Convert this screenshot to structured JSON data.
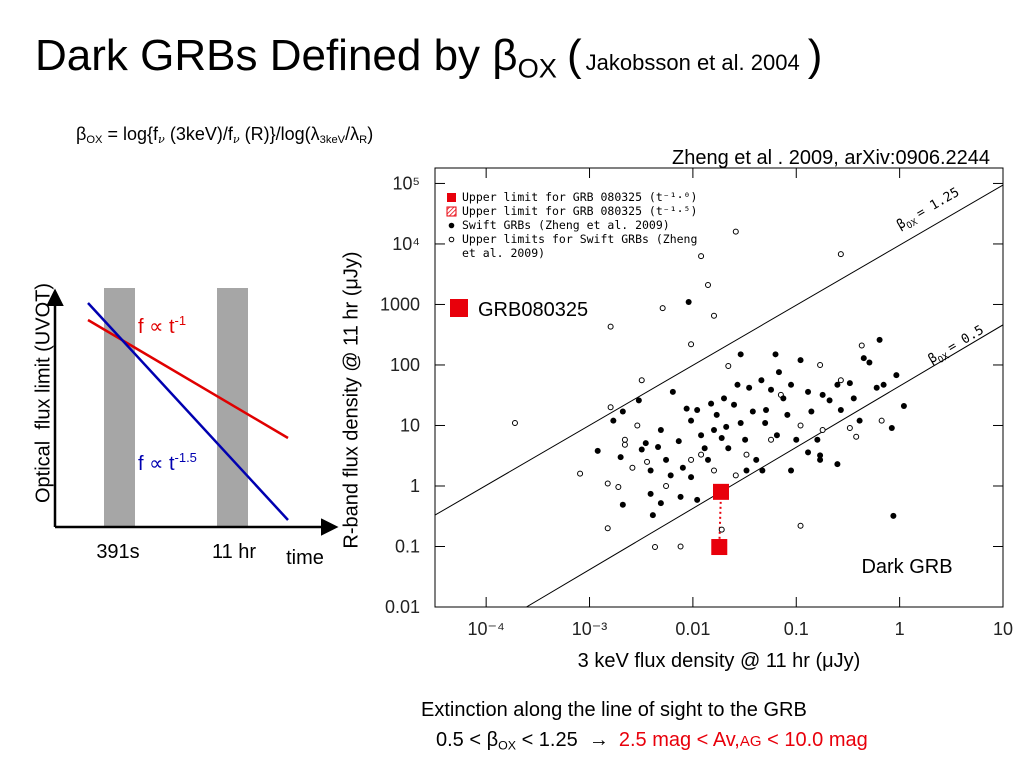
{
  "slide": {
    "title": {
      "main": "Dark GRBs Defined by β",
      "subscript": "OX",
      "open": "(",
      "reference": "Jakobsson et al. 2004",
      "close": ")"
    },
    "formula": [
      "β",
      "OX",
      " = log{f",
      "ν",
      " (3keV)/f",
      "ν",
      " (R)}/log(λ",
      "3keV",
      "/λ",
      "R",
      ")"
    ],
    "citation": "Zheng et al . 2009, arXiv:0906.2244",
    "schematic": {
      "y_label": "Optical  flux limit (UVOT)",
      "x_label": "time",
      "times": [
        "391s",
        "11 hr"
      ],
      "red_label": {
        "text": "f ∝ t",
        "exponent": "-1"
      },
      "blue_label": {
        "text": "f ∝ t",
        "exponent": "-1.5"
      }
    },
    "footer": {
      "line1": "Extinction along the line of sight to the GRB",
      "line2": [
        "0.5 < β",
        "OX",
        " < 1.25  →"
      ],
      "result": [
        "2.5 mag < Av,",
        "AG",
        " < 10.0 mag"
      ]
    }
  },
  "chart_data": {
    "type": "scatter",
    "x_label": "3 keV flux density @ 11 hr (μJy)",
    "y_label": "R-band flux density @ 11 hr (μJy)",
    "x_log": true,
    "y_log": true,
    "xlim": [
      3.2e-05,
      10
    ],
    "ylim": [
      0.01,
      180000
    ],
    "xticks": [
      {
        "value": 0.0001,
        "label": "10⁻⁴"
      },
      {
        "value": 0.001,
        "label": "10⁻³"
      },
      0.01,
      0.1,
      1,
      10
    ],
    "yticks": [
      0.01,
      0.1,
      1,
      10,
      100,
      1000,
      {
        "value": 10000,
        "label": "10⁴"
      },
      {
        "value": 100000,
        "label": "10⁵"
      }
    ],
    "series": [
      {
        "name": "Upper limit for GRB 080325 (t⁻¹·⁰)",
        "color": "#e8000b",
        "marker": "square",
        "x": [
          0.0187
        ],
        "values": [
          0.8
        ]
      },
      {
        "name": "Upper limit for GRB 080325 (t⁻¹·⁵)",
        "color": "#e8000b",
        "marker": "hatched-square",
        "x": [
          0.018
        ],
        "values": [
          0.098
        ]
      },
      {
        "name": "Swift GRBs (Zheng et al. 2009)",
        "color": "#000000",
        "marker": "circle",
        "x": [
          0.0091,
          0.0012,
          0.0017,
          0.0021,
          0.003,
          0.002,
          0.0032,
          0.0035,
          0.0039,
          0.0046,
          0.0049,
          0.0055,
          0.0064,
          0.0073,
          0.008,
          0.0087,
          0.0096,
          0.011,
          0.012,
          0.013,
          0.014,
          0.016,
          0.017,
          0.019,
          0.02,
          0.022,
          0.025,
          0.027,
          0.029,
          0.032,
          0.035,
          0.038,
          0.041,
          0.046,
          0.05,
          0.057,
          0.063,
          0.068,
          0.075,
          0.082,
          0.089,
          0.1,
          0.11,
          0.13,
          0.14,
          0.16,
          0.17,
          0.18,
          0.21,
          0.25,
          0.27,
          0.33,
          0.36,
          0.41,
          0.45,
          0.51,
          0.64,
          0.7,
          0.84,
          0.93,
          1.1,
          0.87,
          0.0021,
          0.0041,
          0.0049,
          0.0061,
          0.0076,
          0.0096,
          0.033,
          0.047,
          0.089,
          0.17,
          0.25,
          0.0039,
          0.011,
          0.021,
          0.029,
          0.065,
          0.13,
          0.6,
          0.015,
          0.051
        ],
        "values": [
          1100,
          3.8,
          12,
          17,
          26,
          3,
          4,
          5.1,
          1.8,
          4.4,
          8.4,
          2.7,
          36,
          5.5,
          2,
          19,
          12,
          18,
          6.9,
          4.2,
          2.7,
          8.4,
          15,
          6.2,
          28,
          4.2,
          22,
          47,
          11,
          5.8,
          42,
          17,
          2.7,
          56,
          11,
          39,
          150,
          76,
          28,
          15,
          47,
          5.8,
          120,
          36,
          17,
          5.8,
          3.2,
          32,
          26,
          47,
          18,
          50,
          28,
          12,
          130,
          110,
          260,
          47,
          9.1,
          68,
          21,
          0.32,
          0.49,
          0.33,
          0.52,
          1.5,
          0.66,
          1.4,
          1.8,
          1.8,
          1.8,
          2.7,
          2.3,
          0.74,
          0.59,
          9.5,
          150,
          6.9,
          3.6,
          42,
          23,
          18
        ]
      },
      {
        "name": "Upper limits for Swift GRBs (Zheng et al. 2009)",
        "color": "#000000",
        "marker": "open-circle",
        "x": [
          0.00019,
          0.0016,
          0.0016,
          0.00081,
          0.0015,
          0.0019,
          0.0015,
          0.0022,
          0.0026,
          0.0029,
          0.0032,
          0.0051,
          0.012,
          0.014,
          0.016,
          0.0096,
          0.026,
          0.27,
          0.022,
          0.0043,
          0.0076,
          0.11,
          0.019,
          0.0022,
          0.0036,
          0.0096,
          0.016,
          0.033,
          0.057,
          0.17,
          0.27,
          0.33,
          0.43,
          0.38,
          0.67,
          0.18,
          0.071,
          0.11,
          0.012,
          0.0055,
          0.026
        ],
        "values": [
          11,
          430,
          20,
          1.6,
          1.1,
          0.96,
          0.2,
          4.8,
          2,
          10,
          56,
          870,
          6300,
          2100,
          650,
          220,
          16000,
          6800,
          96,
          0.098,
          0.1,
          0.22,
          0.19,
          5.8,
          2.5,
          2.7,
          1.8,
          3.3,
          5.8,
          100,
          56,
          9.1,
          210,
          6.5,
          12,
          8.4,
          32,
          10,
          3.3,
          1,
          1.5
        ]
      }
    ],
    "reference_lines": [
      {
        "symbol": "β",
        "subscript": "OX",
        "text": "= 1.25",
        "x": [
          3.2e-05,
          10
        ],
        "y": [
          0.33,
          94000
        ]
      },
      {
        "symbol": "β",
        "subscript": "OX",
        "text": "= 0.5",
        "x": [
          0.000245,
          10
        ],
        "y": [
          0.01,
          460
        ]
      }
    ],
    "annotations": [
      {
        "text": "GRB080325"
      },
      {
        "text": "Dark GRB"
      }
    ]
  }
}
